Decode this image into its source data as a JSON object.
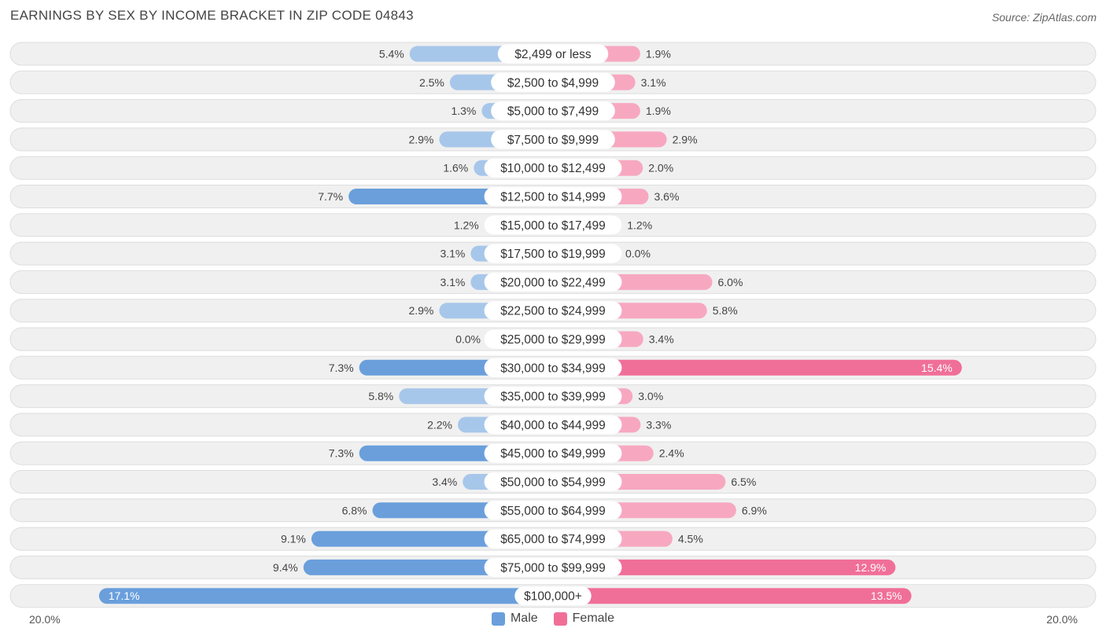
{
  "title": "EARNINGS BY SEX BY INCOME BRACKET IN ZIP CODE 04843",
  "source": "Source: ZipAtlas.com",
  "colors": {
    "male_light": "#a7c7ea",
    "male_dark": "#6a9fdc",
    "female_light": "#f7a8c0",
    "female_dark": "#f06f98",
    "row_bg": "#f0f0f0",
    "row_border": "#dddddd"
  },
  "legend": [
    {
      "label": "Male",
      "color": "#6a9fdc"
    },
    {
      "label": "Female",
      "color": "#f06f98"
    }
  ],
  "axis": {
    "left_label": "20.0%",
    "right_label": "20.0%"
  },
  "chart_data": {
    "type": "bar",
    "orientation": "horizontal-diverging",
    "title": "EARNINGS BY SEX BY INCOME BRACKET IN ZIP CODE 04843",
    "xlim": [
      -20,
      20
    ],
    "categories": [
      "$2,499 or less",
      "$2,500 to $4,999",
      "$5,000 to $7,499",
      "$7,500 to $9,999",
      "$10,000 to $12,499",
      "$12,500 to $14,999",
      "$15,000 to $17,499",
      "$17,500 to $19,999",
      "$20,000 to $22,499",
      "$22,500 to $24,999",
      "$25,000 to $29,999",
      "$30,000 to $34,999",
      "$35,000 to $39,999",
      "$40,000 to $44,999",
      "$45,000 to $49,999",
      "$50,000 to $54,999",
      "$55,000 to $64,999",
      "$65,000 to $74,999",
      "$75,000 to $99,999",
      "$100,000+"
    ],
    "series": [
      {
        "name": "Male",
        "values": [
          5.4,
          2.5,
          1.3,
          2.9,
          1.6,
          7.7,
          1.2,
          3.1,
          3.1,
          2.9,
          0.0,
          7.3,
          5.8,
          2.2,
          7.3,
          3.4,
          6.8,
          9.1,
          9.4,
          17.1
        ],
        "labels": [
          "5.4%",
          "2.5%",
          "1.3%",
          "2.9%",
          "1.6%",
          "7.7%",
          "1.2%",
          "3.1%",
          "3.1%",
          "2.9%",
          "0.0%",
          "7.3%",
          "5.8%",
          "2.2%",
          "7.3%",
          "3.4%",
          "6.8%",
          "9.1%",
          "9.4%",
          "17.1%"
        ]
      },
      {
        "name": "Female",
        "values": [
          1.9,
          3.1,
          1.9,
          2.9,
          2.0,
          3.6,
          1.2,
          0.0,
          6.0,
          5.8,
          3.4,
          15.4,
          3.0,
          3.3,
          2.4,
          6.5,
          6.9,
          4.5,
          12.9,
          13.5
        ],
        "labels": [
          "1.9%",
          "3.1%",
          "1.9%",
          "2.9%",
          "2.0%",
          "3.6%",
          "1.2%",
          "0.0%",
          "6.0%",
          "5.8%",
          "3.4%",
          "15.4%",
          "3.0%",
          "3.3%",
          "2.4%",
          "6.5%",
          "6.9%",
          "4.5%",
          "12.9%",
          "13.5%"
        ]
      }
    ]
  }
}
